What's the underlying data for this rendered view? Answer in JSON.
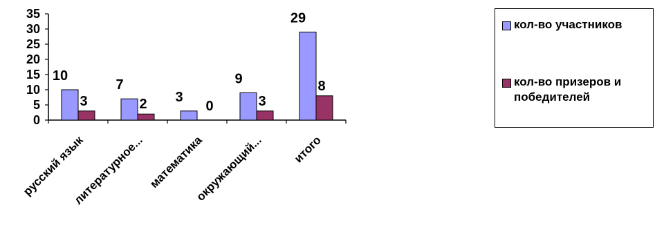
{
  "chart_data": {
    "type": "bar",
    "categories": [
      "русский язык",
      "литературное...",
      "математика",
      "окружающий...",
      "итого"
    ],
    "series": [
      {
        "name": "кол-во участников",
        "values": [
          10,
          7,
          3,
          9,
          29
        ],
        "color": "#9999ff"
      },
      {
        "name": "кол-во призеров и победителей",
        "values": [
          3,
          2,
          0,
          3,
          8
        ],
        "color": "#993366"
      }
    ],
    "data_labels": [
      [
        "10",
        "7",
        "3",
        "9",
        "29"
      ],
      [
        "3",
        "2",
        "0",
        "3",
        "8"
      ]
    ],
    "yticks": [
      "0",
      "5",
      "10",
      "15",
      "20",
      "25",
      "30",
      "35"
    ],
    "ylim": [
      0,
      35
    ],
    "grid": false,
    "legend_position": "right",
    "title": "",
    "xlabel": "",
    "ylabel": ""
  }
}
